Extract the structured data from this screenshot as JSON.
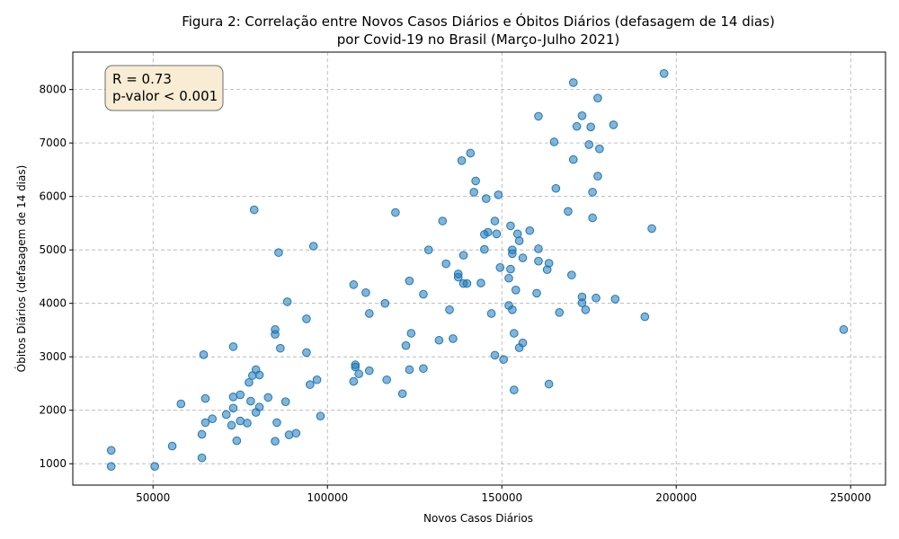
{
  "chart_data": {
    "type": "scatter",
    "title_line1": "Figura 2: Correlação entre Novos Casos Diários e Óbitos Diários (defasagem de 14 dias)",
    "title_line2": "por Covid-19 no Brasil (Março-Julho 2021)",
    "xlabel": "Novos Casos Diários",
    "ylabel": "Óbitos Diários (defasagem de 14 dias)",
    "xlim": [
      27000,
      260000
    ],
    "ylim": [
      600,
      8700
    ],
    "xticks": [
      50000,
      100000,
      150000,
      200000,
      250000
    ],
    "yticks": [
      1000,
      2000,
      3000,
      4000,
      5000,
      6000,
      7000,
      8000
    ],
    "grid": true,
    "point_color": "#1f77b4",
    "annotation": {
      "line1": "R = 0.73",
      "line2": "p-valor < 0.001",
      "placement": "top-left"
    },
    "points": [
      [
        38000,
        950
      ],
      [
        38000,
        1250
      ],
      [
        50500,
        950
      ],
      [
        55500,
        1330
      ],
      [
        58000,
        2120
      ],
      [
        64000,
        1110
      ],
      [
        64000,
        1550
      ],
      [
        64500,
        3040
      ],
      [
        65000,
        2220
      ],
      [
        65000,
        1770
      ],
      [
        67000,
        1840
      ],
      [
        71000,
        1920
      ],
      [
        72500,
        1720
      ],
      [
        73000,
        2250
      ],
      [
        73000,
        2040
      ],
      [
        73000,
        3190
      ],
      [
        74000,
        1430
      ],
      [
        75000,
        2290
      ],
      [
        75000,
        1800
      ],
      [
        77000,
        1760
      ],
      [
        77500,
        2520
      ],
      [
        78000,
        2170
      ],
      [
        78500,
        2650
      ],
      [
        79000,
        5750
      ],
      [
        79500,
        2760
      ],
      [
        79500,
        1960
      ],
      [
        80500,
        2660
      ],
      [
        80500,
        2060
      ],
      [
        83000,
        2240
      ],
      [
        85000,
        3510
      ],
      [
        85000,
        3420
      ],
      [
        85000,
        1420
      ],
      [
        85500,
        1770
      ],
      [
        86000,
        4950
      ],
      [
        86500,
        3160
      ],
      [
        88000,
        2160
      ],
      [
        88500,
        4030
      ],
      [
        89000,
        1540
      ],
      [
        91000,
        1570
      ],
      [
        94000,
        3710
      ],
      [
        94000,
        3080
      ],
      [
        95000,
        2480
      ],
      [
        96000,
        5070
      ],
      [
        97000,
        2570
      ],
      [
        98000,
        1890
      ],
      [
        107500,
        4350
      ],
      [
        107500,
        2540
      ],
      [
        108000,
        2850
      ],
      [
        108000,
        2810
      ],
      [
        109000,
        2680
      ],
      [
        111000,
        4200
      ],
      [
        112000,
        3810
      ],
      [
        112000,
        2740
      ],
      [
        116500,
        4000
      ],
      [
        117000,
        2570
      ],
      [
        119500,
        5700
      ],
      [
        121500,
        2310
      ],
      [
        122500,
        3210
      ],
      [
        123500,
        4420
      ],
      [
        123500,
        2760
      ],
      [
        124000,
        3440
      ],
      [
        127500,
        4170
      ],
      [
        127500,
        2780
      ],
      [
        129000,
        5000
      ],
      [
        132000,
        3310
      ],
      [
        133000,
        5540
      ],
      [
        134000,
        4740
      ],
      [
        135000,
        3880
      ],
      [
        136000,
        3340
      ],
      [
        137500,
        4550
      ],
      [
        137500,
        4490
      ],
      [
        138500,
        6670
      ],
      [
        139000,
        4370
      ],
      [
        139000,
        4900
      ],
      [
        140000,
        4370
      ],
      [
        141000,
        6810
      ],
      [
        142000,
        6080
      ],
      [
        142500,
        6290
      ],
      [
        144000,
        4380
      ],
      [
        145000,
        5010
      ],
      [
        145000,
        5290
      ],
      [
        145500,
        5960
      ],
      [
        146000,
        5330
      ],
      [
        147000,
        3810
      ],
      [
        148000,
        3030
      ],
      [
        148000,
        5540
      ],
      [
        148500,
        5300
      ],
      [
        149000,
        6030
      ],
      [
        149500,
        4670
      ],
      [
        150500,
        2950
      ],
      [
        152000,
        3960
      ],
      [
        152000,
        4470
      ],
      [
        152500,
        5450
      ],
      [
        152500,
        4640
      ],
      [
        153000,
        5000
      ],
      [
        153000,
        4930
      ],
      [
        153000,
        3880
      ],
      [
        153500,
        2380
      ],
      [
        153500,
        3440
      ],
      [
        154000,
        4250
      ],
      [
        154500,
        5300
      ],
      [
        155000,
        5170
      ],
      [
        155000,
        3170
      ],
      [
        156000,
        4850
      ],
      [
        156000,
        3260
      ],
      [
        158000,
        5360
      ],
      [
        160000,
        4190
      ],
      [
        160500,
        4790
      ],
      [
        160500,
        5020
      ],
      [
        160500,
        7500
      ],
      [
        163000,
        4630
      ],
      [
        163500,
        4750
      ],
      [
        163500,
        2490
      ],
      [
        165000,
        7020
      ],
      [
        165500,
        6150
      ],
      [
        166500,
        3830
      ],
      [
        169000,
        5720
      ],
      [
        170000,
        4530
      ],
      [
        170500,
        8130
      ],
      [
        170500,
        6690
      ],
      [
        171500,
        7310
      ],
      [
        173000,
        4010
      ],
      [
        173000,
        4120
      ],
      [
        173000,
        7510
      ],
      [
        174000,
        3880
      ],
      [
        175000,
        6970
      ],
      [
        175500,
        7300
      ],
      [
        176000,
        6080
      ],
      [
        176000,
        5600
      ],
      [
        177000,
        4100
      ],
      [
        177500,
        6380
      ],
      [
        177500,
        7840
      ],
      [
        178000,
        6890
      ],
      [
        182000,
        7340
      ],
      [
        182500,
        4080
      ],
      [
        191000,
        3750
      ],
      [
        193000,
        5400
      ],
      [
        196500,
        8300
      ],
      [
        248000,
        3510
      ]
    ]
  }
}
